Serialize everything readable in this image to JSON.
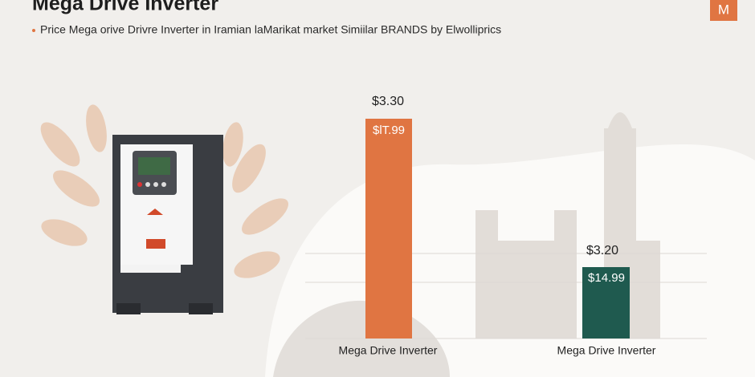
{
  "header": {
    "title": "Mega Drive Inverter",
    "subtitle": "Price Mega orive Drivre Inverter in Iramian laMarikat market Simiilar BRANDS by Elwolliprics",
    "logo": "M"
  },
  "bars": [
    {
      "top_label": "$3.30",
      "inner_label": "$lT.99",
      "category": "Mega Drive Inverter"
    },
    {
      "top_label": "$3.20",
      "inner_label": "$14.99",
      "category": "Mega Drive Inverter"
    }
  ]
}
